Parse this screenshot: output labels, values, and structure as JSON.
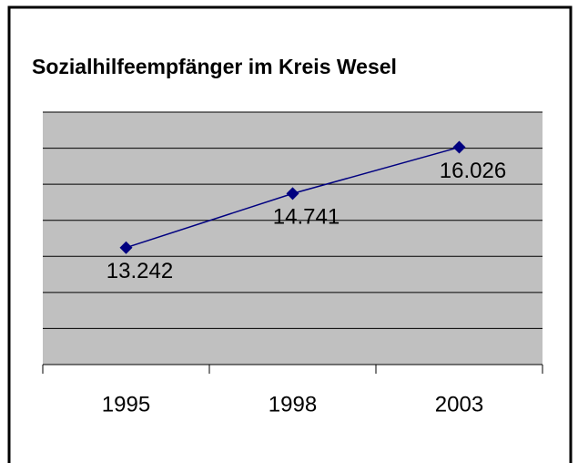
{
  "chart_data": {
    "type": "line",
    "title": "Sozialhilfeempfänger im Kreis Wesel",
    "categories": [
      "1995",
      "1998",
      "2003"
    ],
    "series": [
      {
        "color": "#000080",
        "values": [
          13242,
          14741,
          16026
        ],
        "value_labels": [
          "13.242",
          "14.741",
          "16.026"
        ]
      }
    ],
    "ylim": [
      10000,
      17000
    ],
    "yticks": [
      10000,
      11000,
      12000,
      13000,
      14000,
      15000,
      16000,
      17000
    ],
    "grid": true,
    "plot_background": "#c0c0c0"
  }
}
